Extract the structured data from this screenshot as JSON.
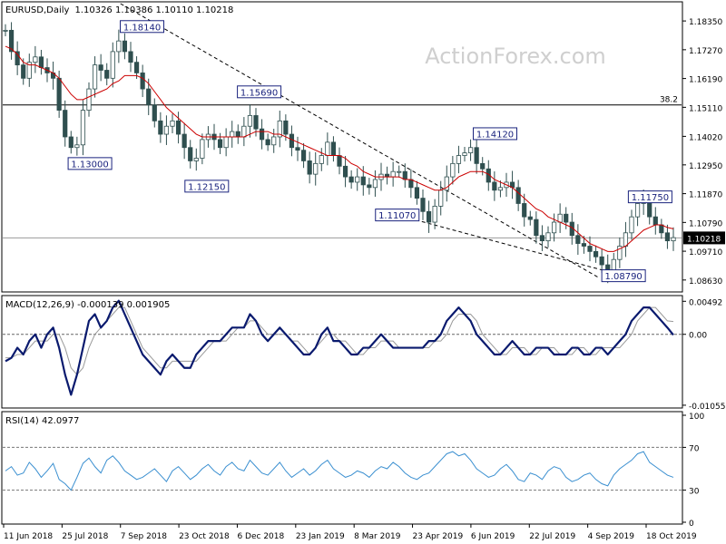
{
  "header": {
    "symbol": "EURUSD,Daily",
    "ohlc": "1.10326 1.10386 1.10110 1.10218"
  },
  "watermark": "ActionForex.com",
  "colors": {
    "candle": "#2f4f4f",
    "ma": "#cc0000",
    "macd": "#0a1a6e",
    "signal": "#9a9a9a",
    "rsi": "#3a8fd0",
    "grid": "#000000"
  },
  "chart_data": [
    {
      "type": "candlestick",
      "title": "EURUSD,Daily",
      "ylim": [
        1.0825,
        1.19
      ],
      "yticks": [
        "1.18350",
        "1.17270",
        "1.16190",
        "1.15110",
        "1.14020",
        "1.12950",
        "1.11870",
        "1.10790",
        "1.09710",
        "1.08630"
      ],
      "current_price": "1.10218",
      "fib_level": {
        "label": "38.2",
        "value": 1.152
      },
      "reference_line": 1.1021,
      "trendline": {
        "from": [
          "7 Sep 2018",
          1.19
        ],
        "to": [
          "13 Sep 2019",
          1.087
        ]
      },
      "support_line": {
        "from": [
          "11 Apr 2019",
          1.1107
        ],
        "to": [
          "1 Oct 2019",
          1.0879
        ]
      },
      "annotations": [
        {
          "label": "1.18140",
          "date": "24 Sep 2018",
          "value": 1.1814
        },
        {
          "label": "1.13000",
          "date": "15 Aug 2018",
          "value": 1.13
        },
        {
          "label": "1.15690",
          "date": "24 Dec 2018",
          "value": 1.1569
        },
        {
          "label": "1.12150",
          "date": "13 Nov 2018",
          "value": 1.1215
        },
        {
          "label": "1.14120",
          "date": "25 Jun 2019",
          "value": 1.1412
        },
        {
          "label": "1.11070",
          "date": "11 Apr 2019",
          "value": 1.1107
        },
        {
          "label": "1.11750",
          "date": "21 Oct 2019",
          "value": 1.1175
        },
        {
          "label": "1.08790",
          "date": "1 Oct 2019",
          "value": 1.0879
        }
      ],
      "x_labels": [
        "11 Jun 2018",
        "25 Jul 2018",
        "7 Sep 2018",
        "23 Oct 2018",
        "6 Dec 2018",
        "23 Jan 2019",
        "8 Mar 2019",
        "23 Apr 2019",
        "6 Jun 2019",
        "22 Jul 2019",
        "4 Sep 2019",
        "18 Oct 2019"
      ],
      "close_series": [
        1.18,
        1.172,
        1.167,
        1.162,
        1.168,
        1.17,
        1.166,
        1.164,
        1.162,
        1.15,
        1.14,
        1.136,
        1.137,
        1.15,
        1.158,
        1.167,
        1.165,
        1.162,
        1.172,
        1.176,
        1.172,
        1.168,
        1.164,
        1.158,
        1.152,
        1.146,
        1.141,
        1.144,
        1.146,
        1.141,
        1.136,
        1.131,
        1.132,
        1.139,
        1.141,
        1.139,
        1.136,
        1.14,
        1.142,
        1.14,
        1.144,
        1.148,
        1.143,
        1.139,
        1.137,
        1.14,
        1.146,
        1.141,
        1.136,
        1.135,
        1.131,
        1.126,
        1.13,
        1.133,
        1.138,
        1.133,
        1.129,
        1.125,
        1.123,
        1.125,
        1.122,
        1.121,
        1.124,
        1.126,
        1.125,
        1.127,
        1.127,
        1.124,
        1.121,
        1.117,
        1.112,
        1.108,
        1.114,
        1.12,
        1.125,
        1.13,
        1.133,
        1.134,
        1.136,
        1.13,
        1.128,
        1.123,
        1.12,
        1.121,
        1.123,
        1.121,
        1.115,
        1.11,
        1.109,
        1.103,
        1.101,
        1.104,
        1.108,
        1.111,
        1.108,
        1.103,
        1.1,
        1.099,
        1.097,
        1.095,
        1.092,
        1.089,
        1.094,
        1.099,
        1.104,
        1.11,
        1.115,
        1.116,
        1.11,
        1.107,
        1.104,
        1.101,
        1.1022
      ],
      "ma_label": "SMA",
      "ma_series": [
        1.174,
        1.173,
        1.171,
        1.168,
        1.167,
        1.167,
        1.166,
        1.165,
        1.164,
        1.162,
        1.159,
        1.156,
        1.154,
        1.154,
        1.155,
        1.156,
        1.157,
        1.158,
        1.16,
        1.161,
        1.163,
        1.163,
        1.163,
        1.162,
        1.16,
        1.157,
        1.154,
        1.151,
        1.149,
        1.147,
        1.145,
        1.143,
        1.141,
        1.14,
        1.14,
        1.14,
        1.14,
        1.14,
        1.14,
        1.14,
        1.14,
        1.141,
        1.142,
        1.142,
        1.142,
        1.141,
        1.141,
        1.14,
        1.139,
        1.138,
        1.137,
        1.136,
        1.135,
        1.134,
        1.133,
        1.133,
        1.133,
        1.132,
        1.13,
        1.129,
        1.127,
        1.126,
        1.125,
        1.125,
        1.125,
        1.125,
        1.125,
        1.124,
        1.124,
        1.123,
        1.122,
        1.121,
        1.12,
        1.12,
        1.121,
        1.123,
        1.125,
        1.126,
        1.127,
        1.127,
        1.127,
        1.126,
        1.124,
        1.123,
        1.122,
        1.121,
        1.119,
        1.117,
        1.115,
        1.113,
        1.112,
        1.11,
        1.109,
        1.108,
        1.107,
        1.106,
        1.104,
        1.102,
        1.1,
        1.099,
        1.098,
        1.097,
        1.097,
        1.098,
        1.099,
        1.101,
        1.103,
        1.105,
        1.106,
        1.107,
        1.107,
        1.106,
        1.1055
      ]
    },
    {
      "type": "line",
      "title": "MACD(12,26,9) -0.000139 0.001905",
      "ylim": [
        -0.0107,
        0.0055
      ],
      "yticks": [
        "0.00492",
        "0.00",
        "-0.010555"
      ],
      "series": [
        {
          "name": "MACD",
          "values": [
            -0.004,
            -0.0035,
            -0.002,
            -0.003,
            -0.001,
            0.0,
            -0.002,
            0.0,
            0.001,
            -0.002,
            -0.006,
            -0.009,
            -0.006,
            -0.002,
            0.002,
            0.003,
            0.001,
            0.002,
            0.004,
            0.005,
            0.003,
            0.001,
            -0.001,
            -0.003,
            -0.004,
            -0.005,
            -0.006,
            -0.004,
            -0.003,
            -0.004,
            -0.005,
            -0.005,
            -0.003,
            -0.002,
            -0.001,
            -0.001,
            -0.001,
            0.0,
            0.001,
            0.001,
            0.001,
            0.003,
            0.002,
            0.0,
            -0.001,
            0.0,
            0.001,
            0.0,
            -0.001,
            -0.002,
            -0.003,
            -0.003,
            -0.002,
            0.0,
            0.001,
            -0.001,
            -0.001,
            -0.002,
            -0.003,
            -0.003,
            -0.002,
            -0.002,
            -0.001,
            0.0,
            -0.001,
            -0.002,
            -0.002,
            -0.002,
            -0.002,
            -0.002,
            -0.002,
            -0.001,
            -0.001,
            0.0,
            0.002,
            0.003,
            0.004,
            0.003,
            0.002,
            0.0,
            -0.001,
            -0.002,
            -0.003,
            -0.003,
            -0.002,
            -0.001,
            -0.002,
            -0.003,
            -0.003,
            -0.002,
            -0.002,
            -0.002,
            -0.003,
            -0.003,
            -0.003,
            -0.002,
            -0.002,
            -0.003,
            -0.003,
            -0.002,
            -0.002,
            -0.003,
            -0.002,
            -0.001,
            0.0,
            0.002,
            0.003,
            0.004,
            0.004,
            0.003,
            0.002,
            0.001,
            -0.0001
          ]
        },
        {
          "name": "Signal",
          "values": [
            -0.0035,
            -0.0035,
            -0.003,
            -0.003,
            -0.002,
            -0.001,
            -0.001,
            -0.001,
            0.0,
            0.0,
            -0.002,
            -0.005,
            -0.006,
            -0.005,
            -0.002,
            0.0,
            0.001,
            0.002,
            0.003,
            0.004,
            0.004,
            0.002,
            0.0,
            -0.002,
            -0.003,
            -0.004,
            -0.005,
            -0.005,
            -0.004,
            -0.004,
            -0.004,
            -0.004,
            -0.004,
            -0.003,
            -0.002,
            -0.001,
            -0.001,
            -0.001,
            0.0,
            0.001,
            0.001,
            0.002,
            0.002,
            0.001,
            0.0,
            0.0,
            0.0,
            0.0,
            -0.001,
            -0.001,
            -0.002,
            -0.003,
            -0.002,
            -0.001,
            0.0,
            0.0,
            -0.001,
            -0.001,
            -0.002,
            -0.003,
            -0.003,
            -0.002,
            -0.002,
            -0.001,
            -0.001,
            -0.001,
            -0.002,
            -0.002,
            -0.002,
            -0.002,
            -0.002,
            -0.002,
            -0.001,
            -0.001,
            0.0,
            0.002,
            0.003,
            0.003,
            0.003,
            0.002,
            0.0,
            -0.001,
            -0.002,
            -0.003,
            -0.003,
            -0.002,
            -0.002,
            -0.002,
            -0.003,
            -0.003,
            -0.002,
            -0.002,
            -0.002,
            -0.003,
            -0.003,
            -0.003,
            -0.002,
            -0.002,
            -0.003,
            -0.003,
            -0.002,
            -0.002,
            -0.002,
            -0.002,
            -0.001,
            0.0,
            0.002,
            0.003,
            0.004,
            0.004,
            0.003,
            0.002,
            0.0019
          ]
        }
      ]
    },
    {
      "type": "line",
      "title": "RSI(14) 42.0977",
      "ylim": [
        0,
        100
      ],
      "yticks": [
        "100",
        "70",
        "30",
        "0"
      ],
      "levels": [
        70,
        30
      ],
      "series": [
        {
          "name": "RSI",
          "values": [
            48,
            52,
            44,
            46,
            56,
            50,
            42,
            48,
            55,
            40,
            36,
            30,
            42,
            55,
            60,
            52,
            46,
            58,
            62,
            56,
            48,
            44,
            40,
            42,
            46,
            50,
            44,
            38,
            48,
            52,
            46,
            40,
            44,
            50,
            54,
            48,
            44,
            52,
            56,
            50,
            48,
            58,
            52,
            46,
            44,
            50,
            56,
            48,
            42,
            46,
            50,
            44,
            48,
            54,
            58,
            50,
            46,
            42,
            44,
            48,
            46,
            42,
            48,
            52,
            50,
            56,
            52,
            46,
            42,
            40,
            44,
            46,
            52,
            58,
            64,
            66,
            62,
            64,
            58,
            50,
            46,
            42,
            44,
            50,
            54,
            48,
            40,
            38,
            46,
            44,
            40,
            48,
            52,
            50,
            42,
            38,
            40,
            44,
            46,
            40,
            36,
            34,
            44,
            50,
            54,
            58,
            64,
            66,
            56,
            52,
            48,
            44,
            42
          ]
        }
      ]
    }
  ]
}
